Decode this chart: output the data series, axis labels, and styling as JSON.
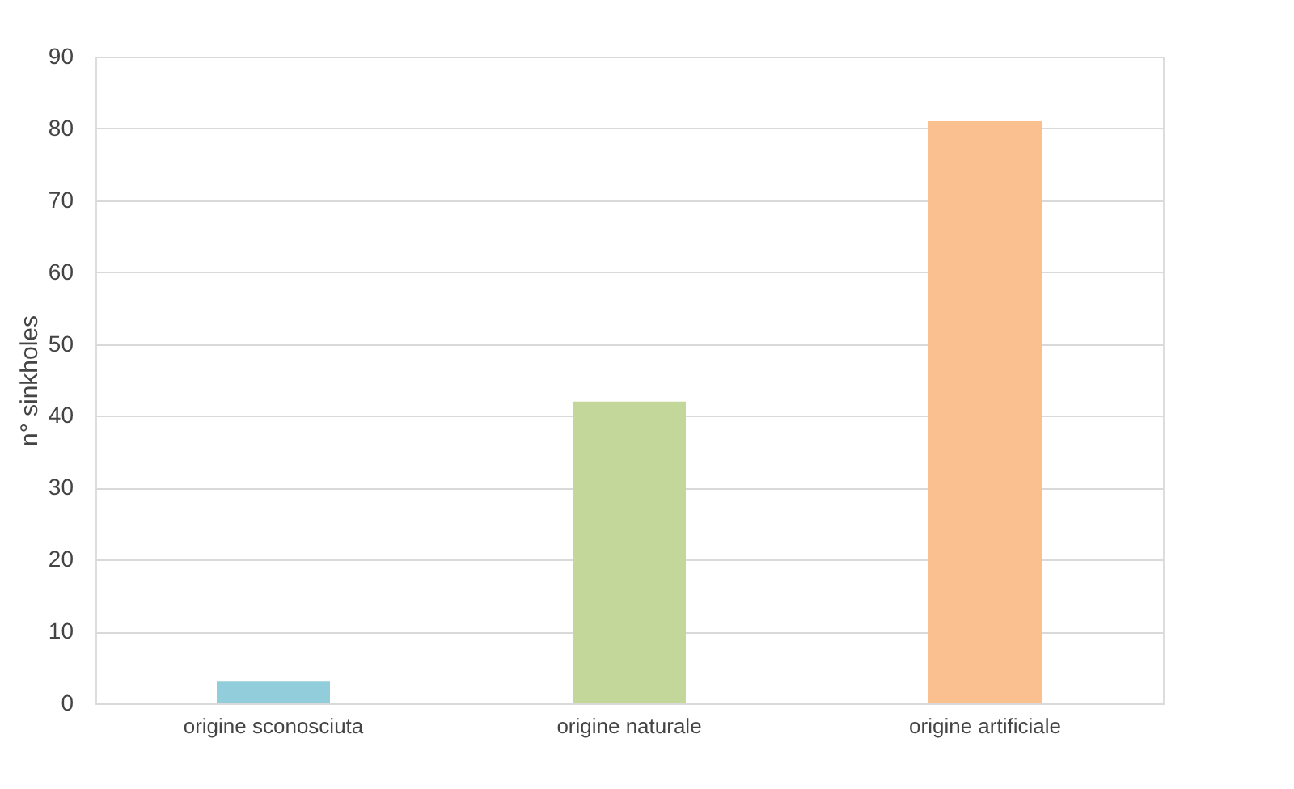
{
  "chart_data": {
    "type": "bar",
    "ylabel": "n° sinkholes",
    "categories": [
      "origine sconosciuta",
      "origine naturale",
      "origine artificiale"
    ],
    "values": [
      3,
      42,
      81
    ],
    "colors": [
      "#92cddc",
      "#c4d79b",
      "#fac090"
    ],
    "ylim": [
      0,
      90
    ],
    "yticks": [
      0,
      10,
      20,
      30,
      40,
      50,
      60,
      70,
      80,
      90
    ],
    "grid": "y"
  }
}
